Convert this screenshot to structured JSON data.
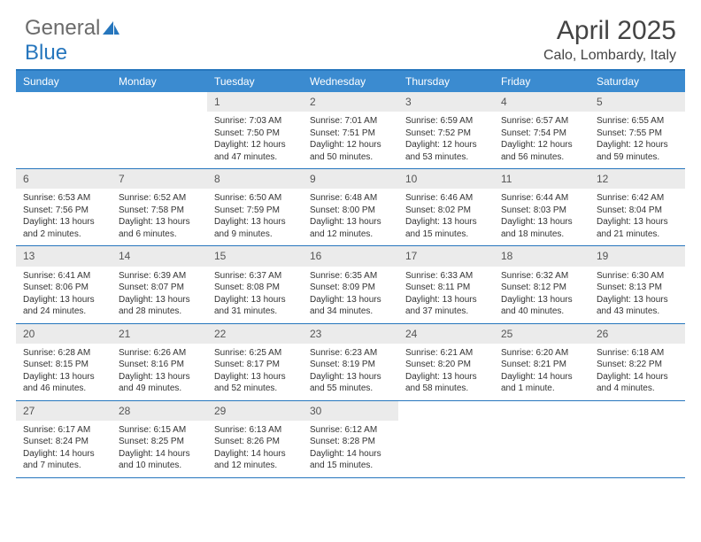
{
  "brand": {
    "name1": "General",
    "name2": "Blue"
  },
  "title": "April 2025",
  "location": "Calo, Lombardy, Italy",
  "colors": {
    "header_bar": "#3b8bd0",
    "border": "#2676bd",
    "daynum_bg": "#ebebeb",
    "text": "#333333",
    "logo_gray": "#6b6b6b"
  },
  "day_names": [
    "Sunday",
    "Monday",
    "Tuesday",
    "Wednesday",
    "Thursday",
    "Friday",
    "Saturday"
  ],
  "weeks": [
    [
      {
        "empty": true
      },
      {
        "empty": true
      },
      {
        "n": "1",
        "sunrise": "Sunrise: 7:03 AM",
        "sunset": "Sunset: 7:50 PM",
        "daylight": "Daylight: 12 hours and 47 minutes."
      },
      {
        "n": "2",
        "sunrise": "Sunrise: 7:01 AM",
        "sunset": "Sunset: 7:51 PM",
        "daylight": "Daylight: 12 hours and 50 minutes."
      },
      {
        "n": "3",
        "sunrise": "Sunrise: 6:59 AM",
        "sunset": "Sunset: 7:52 PM",
        "daylight": "Daylight: 12 hours and 53 minutes."
      },
      {
        "n": "4",
        "sunrise": "Sunrise: 6:57 AM",
        "sunset": "Sunset: 7:54 PM",
        "daylight": "Daylight: 12 hours and 56 minutes."
      },
      {
        "n": "5",
        "sunrise": "Sunrise: 6:55 AM",
        "sunset": "Sunset: 7:55 PM",
        "daylight": "Daylight: 12 hours and 59 minutes."
      }
    ],
    [
      {
        "n": "6",
        "sunrise": "Sunrise: 6:53 AM",
        "sunset": "Sunset: 7:56 PM",
        "daylight": "Daylight: 13 hours and 2 minutes."
      },
      {
        "n": "7",
        "sunrise": "Sunrise: 6:52 AM",
        "sunset": "Sunset: 7:58 PM",
        "daylight": "Daylight: 13 hours and 6 minutes."
      },
      {
        "n": "8",
        "sunrise": "Sunrise: 6:50 AM",
        "sunset": "Sunset: 7:59 PM",
        "daylight": "Daylight: 13 hours and 9 minutes."
      },
      {
        "n": "9",
        "sunrise": "Sunrise: 6:48 AM",
        "sunset": "Sunset: 8:00 PM",
        "daylight": "Daylight: 13 hours and 12 minutes."
      },
      {
        "n": "10",
        "sunrise": "Sunrise: 6:46 AM",
        "sunset": "Sunset: 8:02 PM",
        "daylight": "Daylight: 13 hours and 15 minutes."
      },
      {
        "n": "11",
        "sunrise": "Sunrise: 6:44 AM",
        "sunset": "Sunset: 8:03 PM",
        "daylight": "Daylight: 13 hours and 18 minutes."
      },
      {
        "n": "12",
        "sunrise": "Sunrise: 6:42 AM",
        "sunset": "Sunset: 8:04 PM",
        "daylight": "Daylight: 13 hours and 21 minutes."
      }
    ],
    [
      {
        "n": "13",
        "sunrise": "Sunrise: 6:41 AM",
        "sunset": "Sunset: 8:06 PM",
        "daylight": "Daylight: 13 hours and 24 minutes."
      },
      {
        "n": "14",
        "sunrise": "Sunrise: 6:39 AM",
        "sunset": "Sunset: 8:07 PM",
        "daylight": "Daylight: 13 hours and 28 minutes."
      },
      {
        "n": "15",
        "sunrise": "Sunrise: 6:37 AM",
        "sunset": "Sunset: 8:08 PM",
        "daylight": "Daylight: 13 hours and 31 minutes."
      },
      {
        "n": "16",
        "sunrise": "Sunrise: 6:35 AM",
        "sunset": "Sunset: 8:09 PM",
        "daylight": "Daylight: 13 hours and 34 minutes."
      },
      {
        "n": "17",
        "sunrise": "Sunrise: 6:33 AM",
        "sunset": "Sunset: 8:11 PM",
        "daylight": "Daylight: 13 hours and 37 minutes."
      },
      {
        "n": "18",
        "sunrise": "Sunrise: 6:32 AM",
        "sunset": "Sunset: 8:12 PM",
        "daylight": "Daylight: 13 hours and 40 minutes."
      },
      {
        "n": "19",
        "sunrise": "Sunrise: 6:30 AM",
        "sunset": "Sunset: 8:13 PM",
        "daylight": "Daylight: 13 hours and 43 minutes."
      }
    ],
    [
      {
        "n": "20",
        "sunrise": "Sunrise: 6:28 AM",
        "sunset": "Sunset: 8:15 PM",
        "daylight": "Daylight: 13 hours and 46 minutes."
      },
      {
        "n": "21",
        "sunrise": "Sunrise: 6:26 AM",
        "sunset": "Sunset: 8:16 PM",
        "daylight": "Daylight: 13 hours and 49 minutes."
      },
      {
        "n": "22",
        "sunrise": "Sunrise: 6:25 AM",
        "sunset": "Sunset: 8:17 PM",
        "daylight": "Daylight: 13 hours and 52 minutes."
      },
      {
        "n": "23",
        "sunrise": "Sunrise: 6:23 AM",
        "sunset": "Sunset: 8:19 PM",
        "daylight": "Daylight: 13 hours and 55 minutes."
      },
      {
        "n": "24",
        "sunrise": "Sunrise: 6:21 AM",
        "sunset": "Sunset: 8:20 PM",
        "daylight": "Daylight: 13 hours and 58 minutes."
      },
      {
        "n": "25",
        "sunrise": "Sunrise: 6:20 AM",
        "sunset": "Sunset: 8:21 PM",
        "daylight": "Daylight: 14 hours and 1 minute."
      },
      {
        "n": "26",
        "sunrise": "Sunrise: 6:18 AM",
        "sunset": "Sunset: 8:22 PM",
        "daylight": "Daylight: 14 hours and 4 minutes."
      }
    ],
    [
      {
        "n": "27",
        "sunrise": "Sunrise: 6:17 AM",
        "sunset": "Sunset: 8:24 PM",
        "daylight": "Daylight: 14 hours and 7 minutes."
      },
      {
        "n": "28",
        "sunrise": "Sunrise: 6:15 AM",
        "sunset": "Sunset: 8:25 PM",
        "daylight": "Daylight: 14 hours and 10 minutes."
      },
      {
        "n": "29",
        "sunrise": "Sunrise: 6:13 AM",
        "sunset": "Sunset: 8:26 PM",
        "daylight": "Daylight: 14 hours and 12 minutes."
      },
      {
        "n": "30",
        "sunrise": "Sunrise: 6:12 AM",
        "sunset": "Sunset: 8:28 PM",
        "daylight": "Daylight: 14 hours and 15 minutes."
      },
      {
        "empty": true
      },
      {
        "empty": true
      },
      {
        "empty": true
      }
    ]
  ]
}
